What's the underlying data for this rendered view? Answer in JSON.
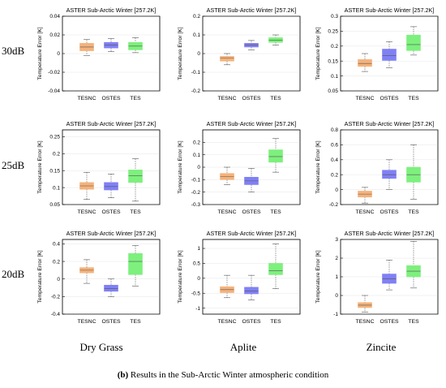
{
  "row_labels": [
    "30dB",
    "25dB",
    "20dB"
  ],
  "col_labels": [
    "Dry Grass",
    "Aplite",
    "Zincite"
  ],
  "caption": {
    "label": "(b)",
    "text": " Results in the Sub-Arctic Winter atmospheric condition"
  },
  "colors": {
    "TESNC": "#f5b27a",
    "OSTES": "#8080f5",
    "TES": "#7df07d"
  },
  "chart_data": [
    {
      "type": "box",
      "title": "ASTER Sub-Arctic Winter [257.2K]",
      "ylabel": "Temperature Error [K]",
      "categories": [
        "TESNC",
        "OSTES",
        "TES"
      ],
      "ylim": [
        -0.04,
        0.04
      ],
      "yticks": [
        -0.04,
        -0.02,
        0,
        0.02,
        0.04
      ],
      "boxes": [
        {
          "min": -0.002,
          "q1": 0.003,
          "median": 0.007,
          "q3": 0.011,
          "max": 0.015
        },
        {
          "min": 0.002,
          "q1": 0.006,
          "median": 0.009,
          "q3": 0.012,
          "max": 0.016
        },
        {
          "min": 0.001,
          "q1": 0.004,
          "median": 0.008,
          "q3": 0.012,
          "max": 0.017
        }
      ]
    },
    {
      "type": "box",
      "title": "ASTER Sub-Arctic Winter [257.2K]",
      "ylabel": "Temperature Error [K]",
      "categories": [
        "TESNC",
        "OSTES",
        "TES"
      ],
      "ylim": [
        -0.2,
        0.2
      ],
      "yticks": [
        -0.2,
        -0.1,
        0,
        0.1,
        0.2
      ],
      "boxes": [
        {
          "min": -0.06,
          "q1": -0.04,
          "median": -0.025,
          "q3": -0.015,
          "max": 0.0
        },
        {
          "min": 0.02,
          "q1": 0.035,
          "median": 0.045,
          "q3": 0.055,
          "max": 0.07
        },
        {
          "min": 0.045,
          "q1": 0.06,
          "median": 0.072,
          "q3": 0.085,
          "max": 0.1
        }
      ]
    },
    {
      "type": "box",
      "title": "ASTER Sub-Arctic Winter [257.2K]",
      "ylabel": "Temperature Error [K]",
      "categories": [
        "TESNC",
        "OSTES",
        "TES"
      ],
      "ylim": [
        0.05,
        0.3
      ],
      "yticks": [
        0.05,
        0.1,
        0.15,
        0.2,
        0.25,
        0.3
      ],
      "boxes": [
        {
          "min": 0.115,
          "q1": 0.132,
          "median": 0.142,
          "q3": 0.155,
          "max": 0.175
        },
        {
          "min": 0.128,
          "q1": 0.152,
          "median": 0.168,
          "q3": 0.19,
          "max": 0.215
        },
        {
          "min": 0.17,
          "q1": 0.185,
          "median": 0.205,
          "q3": 0.237,
          "max": 0.265
        }
      ]
    },
    {
      "type": "box",
      "title": "ASTER Sub-Arctic Winter [257.2K]",
      "ylabel": "Temperature Error [K]",
      "categories": [
        "TESNC",
        "OSTES",
        "TES"
      ],
      "ylim": [
        0.05,
        0.27
      ],
      "yticks": [
        0.05,
        0.1,
        0.15,
        0.2,
        0.25
      ],
      "boxes": [
        {
          "min": 0.065,
          "q1": 0.095,
          "median": 0.105,
          "q3": 0.115,
          "max": 0.145
        },
        {
          "min": 0.07,
          "q1": 0.093,
          "median": 0.103,
          "q3": 0.115,
          "max": 0.14
        },
        {
          "min": 0.06,
          "q1": 0.115,
          "median": 0.135,
          "q3": 0.152,
          "max": 0.185
        }
      ]
    },
    {
      "type": "box",
      "title": "ASTER Sub-Arctic Winter [257.2K]",
      "ylabel": "Temperature Error [K]",
      "categories": [
        "TESNC",
        "OSTES",
        "TES"
      ],
      "ylim": [
        -0.3,
        0.3
      ],
      "yticks": [
        -0.3,
        -0.2,
        -0.1,
        0,
        0.1,
        0.2
      ],
      "boxes": [
        {
          "min": -0.14,
          "q1": -0.1,
          "median": -0.075,
          "q3": -0.05,
          "max": 0.0
        },
        {
          "min": -0.2,
          "q1": -0.14,
          "median": -0.11,
          "q3": -0.08,
          "max": -0.01
        },
        {
          "min": -0.04,
          "q1": 0.04,
          "median": 0.085,
          "q3": 0.14,
          "max": 0.23
        }
      ]
    },
    {
      "type": "box",
      "title": "ASTER Sub-Arctic Winter [257.2K]",
      "ylabel": "Temperature Error [K]",
      "categories": [
        "TESNC",
        "OSTES",
        "TES"
      ],
      "ylim": [
        -0.2,
        0.8
      ],
      "yticks": [
        -0.2,
        0,
        0.2,
        0.4,
        0.6,
        0.8
      ],
      "boxes": [
        {
          "min": -0.18,
          "q1": -0.1,
          "median": -0.06,
          "q3": -0.02,
          "max": 0.03
        },
        {
          "min": 0.0,
          "q1": 0.15,
          "median": 0.2,
          "q3": 0.26,
          "max": 0.4
        },
        {
          "min": -0.13,
          "q1": 0.1,
          "median": 0.2,
          "q3": 0.3,
          "max": 0.6
        }
      ]
    },
    {
      "type": "box",
      "title": "ASTER Sub-Arctic Winter [257.2K]",
      "ylabel": "Temperature Error [K]",
      "categories": [
        "TESNC",
        "OSTES",
        "TES"
      ],
      "ylim": [
        -0.4,
        0.45
      ],
      "yticks": [
        -0.4,
        -0.2,
        0,
        0.2,
        0.4
      ],
      "boxes": [
        {
          "min": -0.05,
          "q1": 0.07,
          "median": 0.1,
          "q3": 0.13,
          "max": 0.22
        },
        {
          "min": -0.2,
          "q1": -0.14,
          "median": -0.11,
          "q3": -0.07,
          "max": 0.0
        },
        {
          "min": -0.08,
          "q1": 0.05,
          "median": 0.2,
          "q3": 0.29,
          "max": 0.38
        }
      ]
    },
    {
      "type": "box",
      "title": "ASTER Sub-Arctic Winter [257.2K]",
      "ylabel": "Temperature Error [K]",
      "categories": [
        "TESNC",
        "OSTES",
        "TES"
      ],
      "ylim": [
        -1.2,
        1.3
      ],
      "yticks": [
        -1,
        -0.5,
        0,
        0.5,
        1
      ],
      "boxes": [
        {
          "min": -0.65,
          "q1": -0.48,
          "median": -0.38,
          "q3": -0.28,
          "max": 0.1
        },
        {
          "min": -0.72,
          "q1": -0.52,
          "median": -0.42,
          "q3": -0.3,
          "max": 0.1
        },
        {
          "min": -0.35,
          "q1": 0.12,
          "median": 0.25,
          "q3": 0.5,
          "max": 1.15
        }
      ]
    },
    {
      "type": "box",
      "title": "ASTER Sub-Arctic Winter [257.2K]",
      "ylabel": "Temperature Error [K]",
      "categories": [
        "TESNC",
        "OSTES",
        "TES"
      ],
      "ylim": [
        -1,
        3
      ],
      "yticks": [
        -1,
        0,
        1,
        2,
        3
      ],
      "boxes": [
        {
          "min": -0.9,
          "q1": -0.65,
          "median": -0.52,
          "q3": -0.38,
          "max": 0.0
        },
        {
          "min": 0.3,
          "q1": 0.65,
          "median": 0.9,
          "q3": 1.15,
          "max": 1.9
        },
        {
          "min": 0.4,
          "q1": 1.0,
          "median": 1.3,
          "q3": 1.6,
          "max": 2.9
        }
      ]
    }
  ]
}
